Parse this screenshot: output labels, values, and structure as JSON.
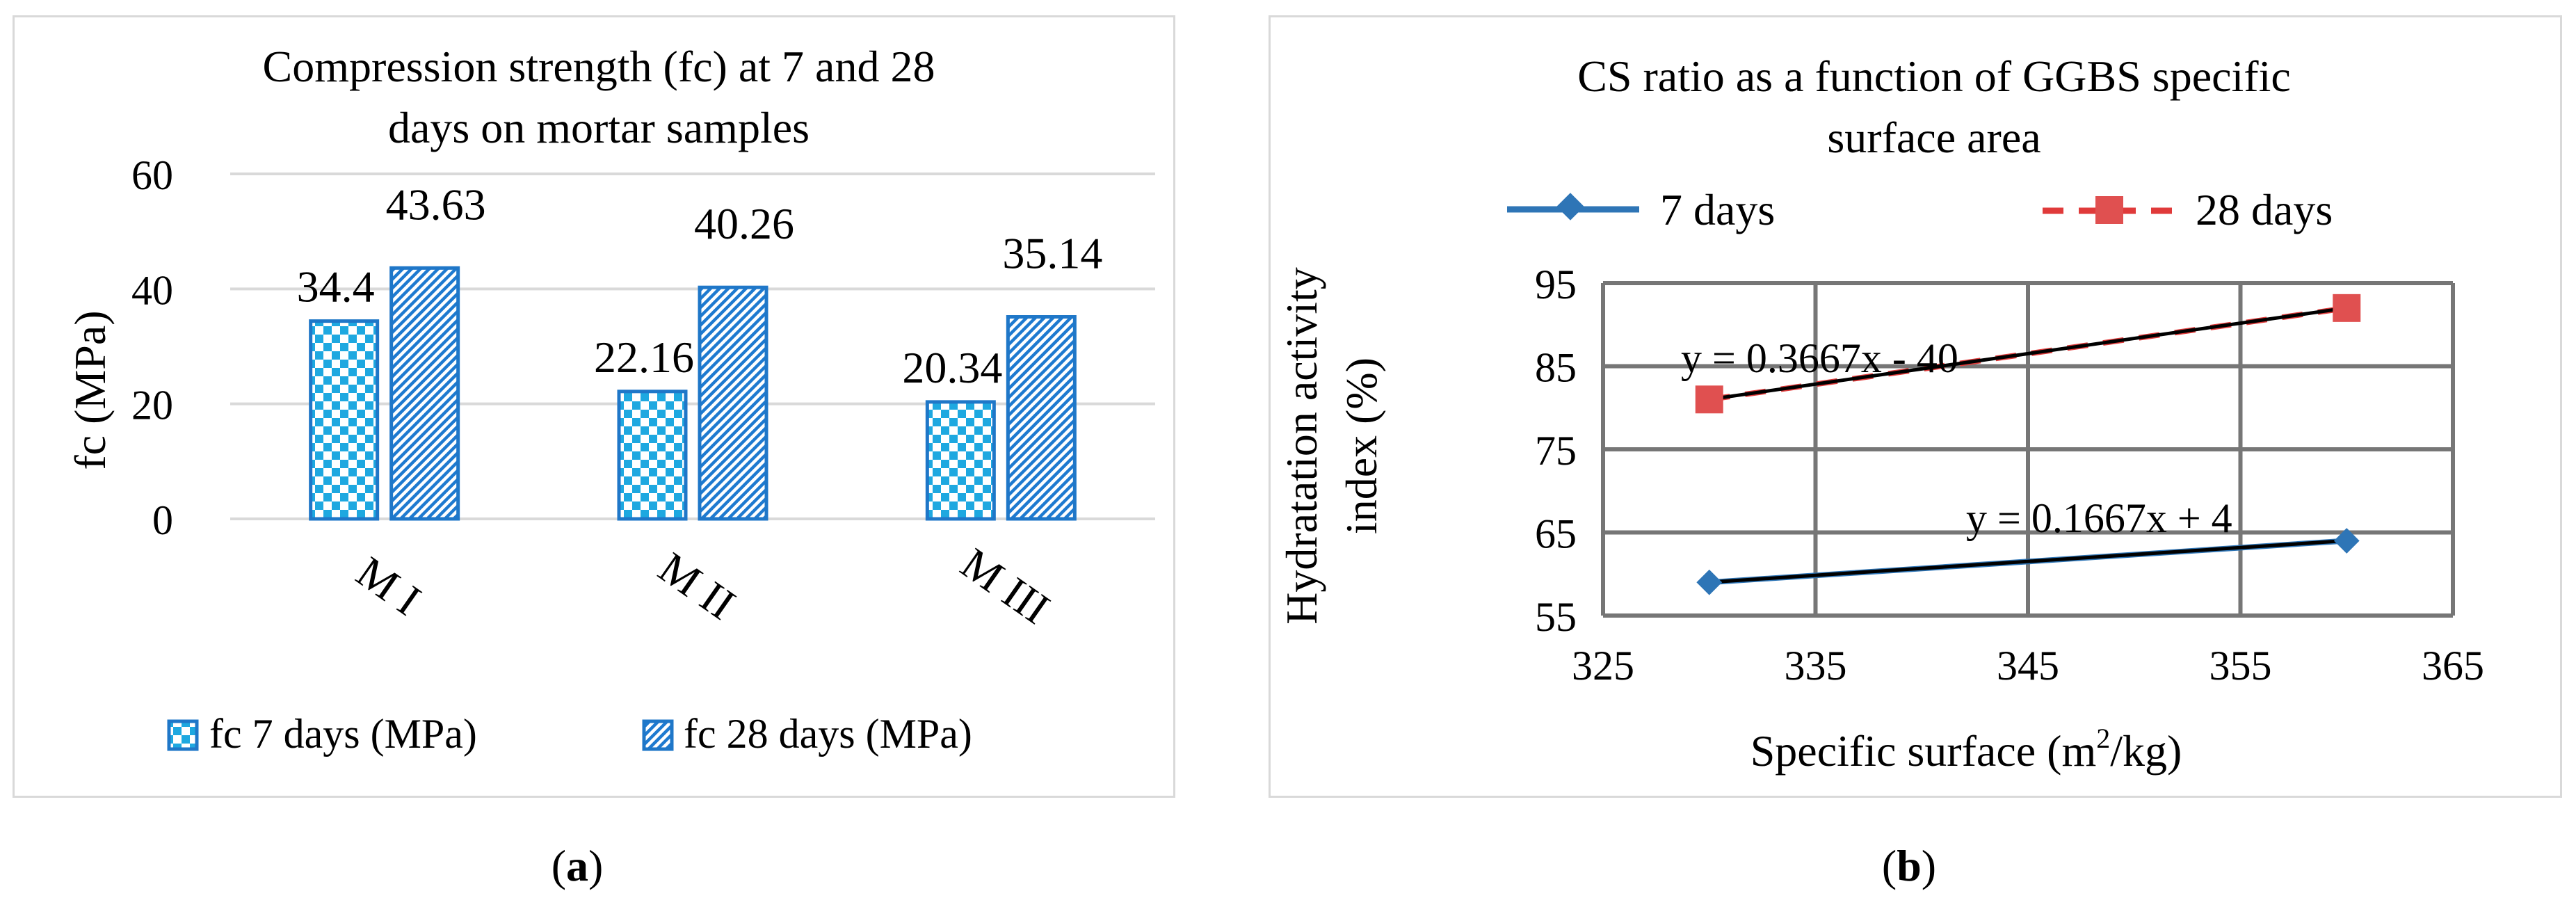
{
  "chart_data": [
    {
      "type": "bar",
      "title": "Compression strength (fc) at 7 and 28 days on mortar samples",
      "title_lines": [
        "Compression strength (fc) at 7 and 28",
        "days on mortar samples"
      ],
      "ylabel": "fc  (MPa)",
      "ylim": [
        0,
        60
      ],
      "yticks": [
        0,
        20,
        40,
        60
      ],
      "grid": true,
      "legend": "bottom",
      "categories": [
        "M I",
        "M II",
        "M III"
      ],
      "series": [
        {
          "name": "fc 7 days (MPa)",
          "values": [
            34.4,
            22.16,
            20.34
          ],
          "labels": [
            "34.4",
            "22.16",
            "20.34"
          ],
          "pattern": "checker",
          "color": "#1ea8e0"
        },
        {
          "name": "fc 28 days (MPa)",
          "values": [
            43.63,
            40.26,
            35.14
          ],
          "labels": [
            "43.63",
            "40.26",
            "35.14"
          ],
          "pattern": "hatch",
          "color": "#1e7ad0"
        }
      ],
      "border_color": "#1f77c8"
    },
    {
      "type": "scatter",
      "title": "CS ratio as a function of GGBS specific surface area",
      "title_lines": [
        "CS ratio as a function of GGBS specific",
        "surface area"
      ],
      "xlabel": "Specific surface (m²/kg)",
      "xlabel_parts": {
        "main": "Specific surface (m",
        "sup": "2",
        "tail": "/kg)"
      },
      "ylabel": "Hydratation activity index (%)",
      "ylabel_lines": [
        "Hydratation activity",
        "index (%)"
      ],
      "xlim": [
        325,
        365
      ],
      "ylim": [
        55,
        95
      ],
      "xticks": [
        325,
        335,
        345,
        355,
        365
      ],
      "yticks": [
        55,
        65,
        75,
        85,
        95
      ],
      "grid": true,
      "legend": "top",
      "series": [
        {
          "name": "7 days",
          "x": [
            330,
            360
          ],
          "y": [
            59,
            64
          ],
          "color": "#2e75b6",
          "marker": "diamond",
          "line": "solid"
        },
        {
          "name": "28 days",
          "x": [
            330,
            360
          ],
          "y": [
            81,
            92
          ],
          "color": "#e03a3a",
          "marker": "square",
          "line": "dashed"
        }
      ],
      "trendlines": [
        {
          "series": "7 days",
          "equation": "y = 0.1667x + 4",
          "slope": 0.1667,
          "intercept": 4
        },
        {
          "series": "28 days",
          "equation": "y = 0.3667x - 40",
          "slope": 0.3667,
          "intercept": -40
        }
      ]
    }
  ],
  "captions": {
    "a": {
      "open": "(",
      "letter": "a",
      "close": ")"
    },
    "b": {
      "open": "(",
      "letter": "b",
      "close": ")"
    }
  }
}
